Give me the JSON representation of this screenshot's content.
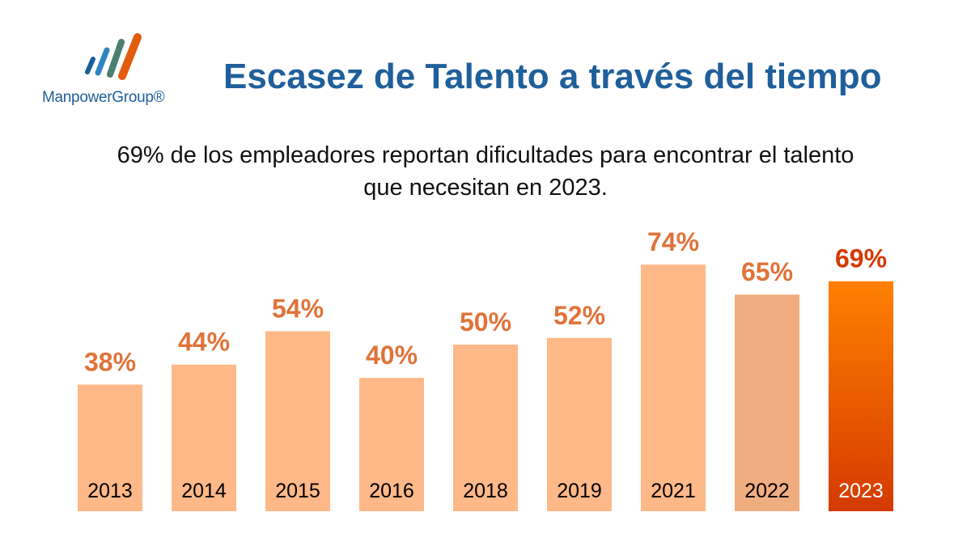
{
  "logo": {
    "text": "ManpowerGroup®",
    "colors": [
      "#1a5e9a",
      "#2e86c1",
      "#4a7f6f",
      "#e35b0d"
    ]
  },
  "title": "Escasez de Talento a través del tiempo",
  "subtitle": {
    "line1": "69% de los empleadores reportan dificultades para encontrar el talento",
    "line2": "que necesitan en 2023."
  },
  "chart_data": {
    "type": "bar",
    "categories": [
      "2013",
      "2014",
      "2015",
      "2016",
      "2018",
      "2019",
      "2021",
      "2022",
      "2023"
    ],
    "values": [
      38,
      44,
      54,
      40,
      50,
      52,
      74,
      65,
      69
    ],
    "labels": [
      "38%",
      "44%",
      "54%",
      "40%",
      "50%",
      "52%",
      "74%",
      "65%",
      "69%"
    ],
    "ylim": [
      0,
      76
    ],
    "colors": {
      "default": "#ffb888",
      "2022": "#f0ad80",
      "2023_top": "#ff8000",
      "2023_bottom": "#d43a00",
      "label": "#e0733a",
      "label_2023": "#d43a00"
    },
    "grid": false
  }
}
